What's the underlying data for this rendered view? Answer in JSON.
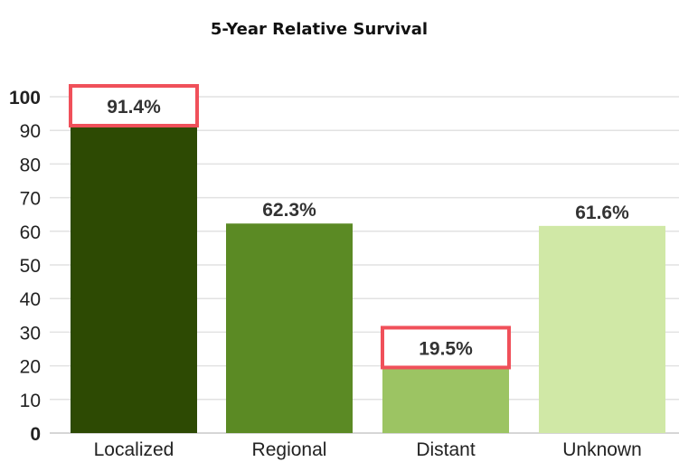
{
  "chart_data": {
    "type": "bar",
    "title": "5-Year Relative Survival",
    "categories": [
      "Localized",
      "Regional",
      "Distant",
      "Unknown"
    ],
    "values": [
      91.4,
      62.3,
      19.5,
      61.6
    ],
    "value_labels": [
      "91.4%",
      "62.3%",
      "19.5%",
      "61.6%"
    ],
    "colors": [
      "#2d4a03",
      "#5b8a24",
      "#9cc463",
      "#d0e8a6"
    ],
    "highlighted": [
      true,
      false,
      true,
      false
    ],
    "highlight_color": "#f0505a",
    "yticks": [
      0,
      10,
      20,
      30,
      40,
      50,
      60,
      70,
      80,
      90,
      100
    ],
    "bold_yticks": [
      0,
      100
    ],
    "ylim": [
      0,
      100
    ],
    "xlabel": "",
    "ylabel": "",
    "grid": true,
    "legend": "none"
  }
}
